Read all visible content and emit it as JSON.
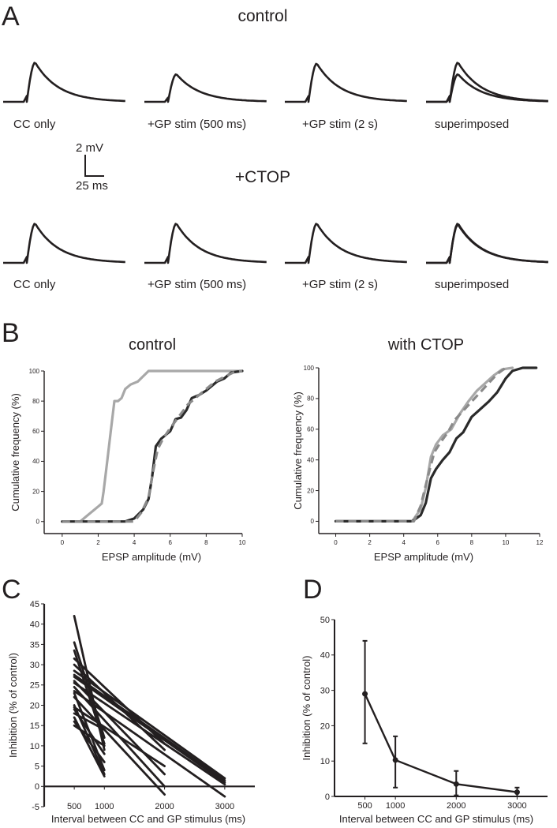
{
  "panels": {
    "a": "A",
    "b": "B",
    "c": "C",
    "d": "D"
  },
  "panel_a": {
    "rows": [
      {
        "title": "control",
        "traces": [
          {
            "label": "CC only",
            "peaks": [
              3.7
            ]
          },
          {
            "label": "+GP stim (500 ms)",
            "peaks": [
              2.6
            ]
          },
          {
            "label": "+GP stim (2 s)",
            "peaks": [
              3.6
            ]
          },
          {
            "label": "superimposed",
            "peaks": [
              3.7,
              2.6
            ]
          }
        ]
      },
      {
        "title": "+CTOP",
        "traces": [
          {
            "label": "CC only",
            "peaks": [
              3.7
            ]
          },
          {
            "label": "+GP stim (500 ms)",
            "peaks": [
              3.7
            ]
          },
          {
            "label": "+GP stim (2 s)",
            "peaks": [
              3.7
            ]
          },
          {
            "label": "superimposed",
            "peaks": [
              3.7,
              3.6
            ]
          }
        ]
      }
    ],
    "scale_bar": {
      "v_label": "2 mV",
      "t_label": "25 ms"
    }
  },
  "chart_data": [
    {
      "type": "line",
      "title": "control",
      "xlabel": "EPSP amplitude (mV)",
      "ylabel": "Cumulative frequency (%)",
      "xlim": [
        -1,
        10
      ],
      "ylim": [
        -8,
        100
      ],
      "xticks": [
        0,
        2,
        4,
        6,
        8,
        10
      ],
      "yticks": [
        0,
        20,
        40,
        60,
        80,
        100
      ],
      "series": [
        {
          "color": "#a8a8a8",
          "dash": false,
          "x": [
            1.0,
            1.2,
            1.5,
            1.8,
            2.0,
            2.2,
            2.3,
            2.5,
            2.7,
            2.9,
            3.0,
            3.1,
            3.3,
            3.5,
            3.8,
            4.2,
            4.8,
            5.5,
            10.0
          ],
          "y": [
            0,
            2,
            5,
            8,
            10,
            12,
            20,
            40,
            60,
            80,
            80,
            80,
            82,
            88,
            91,
            93,
            100,
            100,
            100
          ]
        },
        {
          "color": "#2a2a2a",
          "dash": false,
          "x": [
            0,
            3.5,
            4.0,
            4.5,
            4.8,
            5.0,
            5.2,
            5.5,
            6.0,
            6.3,
            6.6,
            6.9,
            7.2,
            7.6,
            8.0,
            8.3,
            8.6,
            9.0,
            9.4,
            10.0
          ],
          "y": [
            0,
            0,
            2,
            8,
            15,
            30,
            50,
            55,
            60,
            68,
            69,
            74,
            82,
            84,
            87,
            90,
            93,
            95,
            99,
            100
          ]
        },
        {
          "color": "#8a8a8a",
          "dash": true,
          "x": [
            0,
            4.0,
            4.4,
            4.8,
            5.0,
            5.3,
            5.6,
            6.0,
            6.5,
            7.0,
            7.5,
            8.0,
            8.5,
            9.0,
            9.5,
            10.0
          ],
          "y": [
            0,
            0,
            6,
            16,
            30,
            48,
            55,
            62,
            70,
            78,
            83,
            88,
            93,
            96,
            99,
            100
          ]
        }
      ]
    },
    {
      "type": "line",
      "title": "with CTOP",
      "xlabel": "EPSP amplitude (mV)",
      "ylabel": "Cumulative frequency (%)",
      "xlim": [
        -1,
        12
      ],
      "ylim": [
        -8,
        100
      ],
      "xticks": [
        0,
        2,
        4,
        6,
        8,
        10,
        12
      ],
      "yticks": [
        0,
        20,
        40,
        60,
        80,
        100
      ],
      "series": [
        {
          "color": "#a8a8a8",
          "dash": false,
          "x": [
            0,
            4.5,
            5.0,
            5.3,
            5.6,
            5.9,
            6.3,
            6.8,
            7.3,
            7.8,
            8.3,
            8.8,
            9.3,
            9.8,
            10.4
          ],
          "y": [
            0,
            0,
            8,
            22,
            42,
            50,
            56,
            60,
            70,
            78,
            85,
            90,
            95,
            99,
            100
          ]
        },
        {
          "color": "#2a2a2a",
          "dash": false,
          "x": [
            0,
            4.5,
            5.0,
            5.3,
            5.6,
            5.9,
            6.3,
            6.7,
            7.1,
            7.5,
            8.0,
            8.4,
            9.0,
            9.5,
            10.0,
            10.4,
            11.0,
            11.8
          ],
          "y": [
            0,
            0,
            4,
            12,
            28,
            34,
            40,
            45,
            54,
            58,
            68,
            72,
            78,
            84,
            93,
            98,
            100,
            100
          ]
        },
        {
          "color": "#8a8a8a",
          "dash": true,
          "x": [
            0,
            4.6,
            5.0,
            5.4,
            5.8,
            6.2,
            6.6,
            7.0,
            7.5,
            8.0,
            8.5,
            9.0,
            9.5,
            10.0
          ],
          "y": [
            0,
            0,
            10,
            28,
            45,
            52,
            58,
            66,
            72,
            78,
            84,
            90,
            96,
            100
          ]
        }
      ]
    },
    {
      "type": "line",
      "title": "",
      "xlabel": "Interval between CC and GP stimulus (ms)",
      "ylabel": "Inhibition (% of control)",
      "xlim": [
        0,
        3500
      ],
      "ylim": [
        -5,
        45
      ],
      "xticks": [
        500,
        1000,
        2000,
        3000
      ],
      "yticks": [
        -5,
        0,
        5,
        10,
        15,
        20,
        25,
        30,
        35,
        40,
        45
      ],
      "series": [
        {
          "color": "#231f20",
          "x": [
            500,
            1000
          ],
          "y": [
            42.0,
            9.0
          ]
        },
        {
          "color": "#231f20",
          "x": [
            500,
            1000
          ],
          "y": [
            35.5,
            12.0
          ]
        },
        {
          "color": "#231f20",
          "x": [
            500,
            1000
          ],
          "y": [
            33.5,
            10.5
          ]
        },
        {
          "color": "#231f20",
          "x": [
            500,
            2000
          ],
          "y": [
            31.5,
            10.5
          ]
        },
        {
          "color": "#231f20",
          "x": [
            500,
            2000
          ],
          "y": [
            30.0,
            9.0
          ]
        },
        {
          "color": "#231f20",
          "x": [
            500,
            3000
          ],
          "y": [
            28.5,
            2.0
          ]
        },
        {
          "color": "#231f20",
          "x": [
            500,
            3000
          ],
          "y": [
            27.5,
            1.5
          ]
        },
        {
          "color": "#231f20",
          "x": [
            500,
            3000
          ],
          "y": [
            27.0,
            1.0
          ]
        },
        {
          "color": "#231f20",
          "x": [
            500,
            2000
          ],
          "y": [
            26.0,
            3.0
          ]
        },
        {
          "color": "#231f20",
          "x": [
            500,
            3000
          ],
          "y": [
            25.5,
            0.5
          ]
        },
        {
          "color": "#231f20",
          "x": [
            500,
            2000
          ],
          "y": [
            24.5,
            0.0
          ]
        },
        {
          "color": "#231f20",
          "x": [
            500,
            3000
          ],
          "y": [
            23.5,
            -2.5
          ]
        },
        {
          "color": "#231f20",
          "x": [
            500,
            1000
          ],
          "y": [
            23.0,
            4.0
          ]
        },
        {
          "color": "#231f20",
          "x": [
            500,
            2000
          ],
          "y": [
            22.0,
            -2.0
          ]
        },
        {
          "color": "#231f20",
          "x": [
            500,
            1000
          ],
          "y": [
            20.0,
            3.0
          ]
        },
        {
          "color": "#231f20",
          "x": [
            500,
            2000
          ],
          "y": [
            19.5,
            5.0
          ]
        },
        {
          "color": "#231f20",
          "x": [
            500,
            1000
          ],
          "y": [
            19.0,
            8.0
          ]
        },
        {
          "color": "#231f20",
          "x": [
            500,
            1000
          ],
          "y": [
            18.0,
            14.0
          ]
        },
        {
          "color": "#231f20",
          "x": [
            500,
            1000
          ],
          "y": [
            17.0,
            2.5
          ]
        },
        {
          "color": "#231f20",
          "x": [
            500,
            1000
          ],
          "y": [
            16.0,
            6.0
          ]
        },
        {
          "color": "#231f20",
          "x": [
            500,
            1000
          ],
          "y": [
            15.0,
            10.0
          ]
        }
      ]
    },
    {
      "type": "line",
      "title": "",
      "xlabel": "Interval between CC and GP stimulus (ms)",
      "ylabel": "Inhibition (% of control)",
      "xlim": [
        0,
        3500
      ],
      "ylim": [
        0,
        50
      ],
      "xticks": [
        500,
        1000,
        2000,
        3000
      ],
      "yticks": [
        0,
        10,
        20,
        30,
        40,
        50
      ],
      "series": [
        {
          "color": "#231f20",
          "x": [
            500,
            1000,
            2000,
            3000
          ],
          "y": [
            29.0,
            10.3,
            3.5,
            1.2
          ],
          "err_low": [
            15.0,
            2.5,
            0.3,
            0.0
          ],
          "err_high": [
            44.0,
            17.0,
            7.2,
            2.5
          ]
        }
      ]
    }
  ]
}
